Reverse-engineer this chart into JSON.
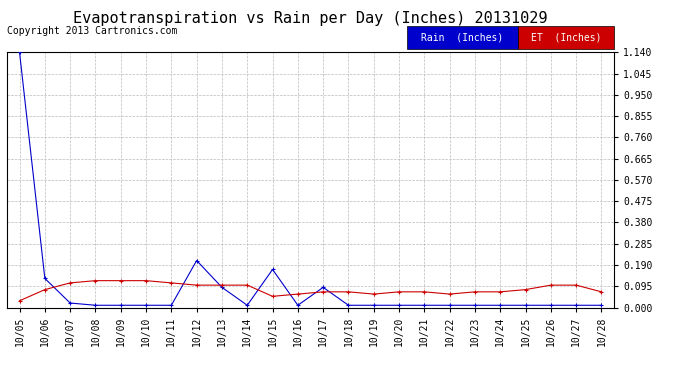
{
  "title": "Evapotranspiration vs Rain per Day (Inches) 20131029",
  "copyright": "Copyright 2013 Cartronics.com",
  "x_labels": [
    "10/05",
    "10/06",
    "10/07",
    "10/08",
    "10/09",
    "10/10",
    "10/11",
    "10/12",
    "10/13",
    "10/14",
    "10/15",
    "10/16",
    "10/17",
    "10/18",
    "10/19",
    "10/20",
    "10/21",
    "10/22",
    "10/23",
    "10/24",
    "10/25",
    "10/26",
    "10/27",
    "10/28"
  ],
  "rain_values": [
    1.14,
    0.13,
    0.02,
    0.01,
    0.01,
    0.01,
    0.01,
    0.21,
    0.09,
    0.01,
    0.17,
    0.01,
    0.09,
    0.01,
    0.01,
    0.01,
    0.01,
    0.01,
    0.01,
    0.01,
    0.01,
    0.01,
    0.01,
    0.01
  ],
  "et_values": [
    0.03,
    0.08,
    0.11,
    0.12,
    0.12,
    0.12,
    0.11,
    0.1,
    0.1,
    0.1,
    0.05,
    0.06,
    0.07,
    0.07,
    0.06,
    0.07,
    0.07,
    0.06,
    0.07,
    0.07,
    0.08,
    0.1,
    0.1,
    0.07
  ],
  "ylim": [
    0.0,
    1.14
  ],
  "yticks": [
    0.0,
    0.095,
    0.19,
    0.285,
    0.38,
    0.475,
    0.57,
    0.665,
    0.76,
    0.855,
    0.95,
    1.045,
    1.14
  ],
  "rain_color": "#0000cc",
  "et_color": "#cc0000",
  "bg_color": "#ffffff",
  "grid_color": "#bbbbbb",
  "legend_rain_bg": "#0000cc",
  "legend_et_bg": "#cc0000",
  "legend_text_color": "#ffffff",
  "title_fontsize": 11,
  "copyright_fontsize": 7,
  "tick_fontsize": 7,
  "legend_fontsize": 7
}
